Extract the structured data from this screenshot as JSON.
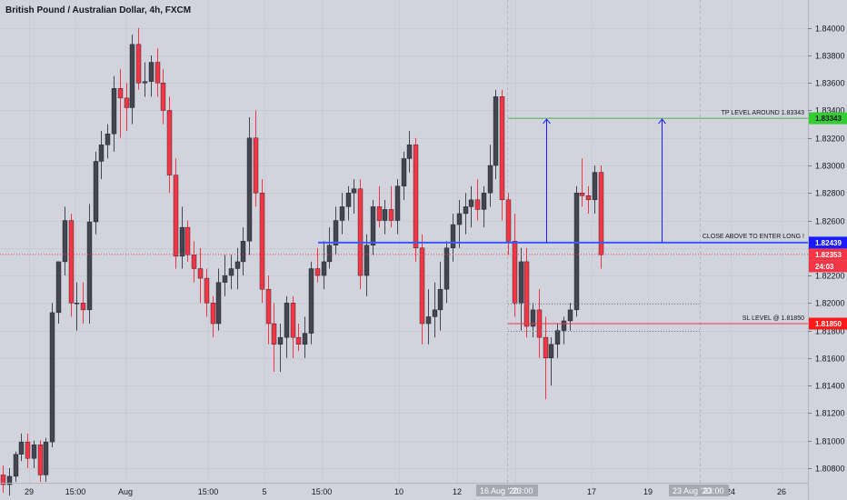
{
  "title": "British Pound / Australian Dollar, 4h, FXCM",
  "chart_data": {
    "type": "candlestick",
    "symbol": "British Pound / Australian Dollar",
    "interval": "4h",
    "source": "FXCM",
    "ylim": [
      1.807,
      1.8415
    ],
    "y_ticks": [
      "1.84000",
      "1.83800",
      "1.83600",
      "1.83400",
      "1.83200",
      "1.83000",
      "1.82800",
      "1.82600",
      "1.82400",
      "1.82200",
      "1.82000",
      "1.81800",
      "1.81600",
      "1.81400",
      "1.81200",
      "1.81000",
      "1.80800"
    ],
    "x_ticks": [
      "29",
      "15:00",
      "Aug",
      "15:00",
      "5",
      "15:00",
      "10",
      "12",
      "15:00",
      "17",
      "19",
      "15:00",
      "24",
      "26"
    ],
    "x_highlights": [
      "16 Aug '20",
      "23:00",
      "23 Aug '20",
      "23:00"
    ],
    "countdown": "24:03",
    "last_price": "1.82353",
    "levels": [
      {
        "name": "tp",
        "label": "TP LEVEL AROUND 1.83343",
        "value": 1.83343,
        "tag": "1.83343",
        "color": "#4caf50",
        "tag_bg": "#33cc33"
      },
      {
        "name": "entry",
        "label": "CLOSE ABOVE TO ENTER LONG !",
        "value": 1.82439,
        "tag": "1.82439",
        "color": "#3d5afe",
        "tag_bg": "#1a1aff"
      },
      {
        "name": "sl",
        "label": "SL LEVEL @ 1.81850",
        "value": 1.8185,
        "tag": "1.81850",
        "color": "#f23645",
        "tag_bg": "#ff1a1a"
      }
    ],
    "candles": [
      [
        1.8075,
        1.8082,
        1.8062,
        1.8068
      ],
      [
        1.8068,
        1.808,
        1.806,
        1.8074
      ],
      [
        1.8074,
        1.8092,
        1.807,
        1.809
      ],
      [
        1.809,
        1.8105,
        1.8085,
        1.8099
      ],
      [
        1.8099,
        1.8105,
        1.808,
        1.8087
      ],
      [
        1.8087,
        1.81,
        1.808,
        1.8097
      ],
      [
        1.8097,
        1.81,
        1.807,
        1.8075
      ],
      [
        1.8075,
        1.8102,
        1.807,
        1.8099
      ],
      [
        1.8099,
        1.82,
        1.8095,
        1.8193
      ],
      [
        1.8193,
        1.823,
        1.8185,
        1.823
      ],
      [
        1.823,
        1.827,
        1.822,
        1.826
      ],
      [
        1.826,
        1.8265,
        1.819,
        1.82
      ],
      [
        1.82,
        1.8215,
        1.818,
        1.82
      ],
      [
        1.82,
        1.8215,
        1.8185,
        1.8195
      ],
      [
        1.8195,
        1.8272,
        1.8185,
        1.8259
      ],
      [
        1.8259,
        1.831,
        1.825,
        1.8303
      ],
      [
        1.8303,
        1.8325,
        1.829,
        1.8315
      ],
      [
        1.8315,
        1.833,
        1.8305,
        1.8323
      ],
      [
        1.8323,
        1.8365,
        1.831,
        1.8356
      ],
      [
        1.8356,
        1.837,
        1.832,
        1.8349
      ],
      [
        1.8349,
        1.836,
        1.8325,
        1.8342
      ],
      [
        1.8342,
        1.8395,
        1.833,
        1.8388
      ],
      [
        1.8388,
        1.84,
        1.8355,
        1.836
      ],
      [
        1.836,
        1.8375,
        1.835,
        1.8361
      ],
      [
        1.8361,
        1.838,
        1.835,
        1.8375
      ],
      [
        1.8375,
        1.8385,
        1.835,
        1.836
      ],
      [
        1.836,
        1.837,
        1.833,
        1.834
      ],
      [
        1.834,
        1.835,
        1.828,
        1.8293
      ],
      [
        1.8293,
        1.8305,
        1.8225,
        1.8234
      ],
      [
        1.8234,
        1.827,
        1.8225,
        1.8255
      ],
      [
        1.8255,
        1.826,
        1.823,
        1.8235
      ],
      [
        1.8235,
        1.8245,
        1.8215,
        1.8225
      ],
      [
        1.8225,
        1.824,
        1.82,
        1.8218
      ],
      [
        1.8218,
        1.8225,
        1.819,
        1.82
      ],
      [
        1.82,
        1.8205,
        1.8175,
        1.8185
      ],
      [
        1.8185,
        1.8225,
        1.818,
        1.8215
      ],
      [
        1.8215,
        1.8235,
        1.8205,
        1.822
      ],
      [
        1.822,
        1.8235,
        1.821,
        1.8225
      ],
      [
        1.8225,
        1.824,
        1.821,
        1.823
      ],
      [
        1.823,
        1.8255,
        1.822,
        1.8245
      ],
      [
        1.8245,
        1.8335,
        1.8235,
        1.832
      ],
      [
        1.832,
        1.834,
        1.827,
        1.828
      ],
      [
        1.828,
        1.829,
        1.82,
        1.821
      ],
      [
        1.821,
        1.822,
        1.817,
        1.8185
      ],
      [
        1.8185,
        1.82,
        1.815,
        1.817
      ],
      [
        1.817,
        1.8185,
        1.815,
        1.8175
      ],
      [
        1.8175,
        1.8205,
        1.816,
        1.82
      ],
      [
        1.82,
        1.8205,
        1.816,
        1.8175
      ],
      [
        1.8175,
        1.8185,
        1.8165,
        1.817
      ],
      [
        1.817,
        1.819,
        1.816,
        1.8178
      ],
      [
        1.8178,
        1.823,
        1.817,
        1.8225
      ],
      [
        1.8225,
        1.824,
        1.8215,
        1.822
      ],
      [
        1.822,
        1.8245,
        1.821,
        1.823
      ],
      [
        1.823,
        1.8255,
        1.8225,
        1.8242
      ],
      [
        1.8242,
        1.827,
        1.8235,
        1.826
      ],
      [
        1.826,
        1.828,
        1.825,
        1.827
      ],
      [
        1.827,
        1.8285,
        1.826,
        1.828
      ],
      [
        1.828,
        1.829,
        1.8265,
        1.8283
      ],
      [
        1.8283,
        1.829,
        1.821,
        1.822
      ],
      [
        1.822,
        1.825,
        1.8205,
        1.8242
      ],
      [
        1.8242,
        1.8275,
        1.8235,
        1.827
      ],
      [
        1.827,
        1.8285,
        1.8255,
        1.826
      ],
      [
        1.826,
        1.8275,
        1.825,
        1.8268
      ],
      [
        1.8268,
        1.8285,
        1.8255,
        1.826
      ],
      [
        1.826,
        1.829,
        1.825,
        1.8285
      ],
      [
        1.8285,
        1.831,
        1.8275,
        1.8305
      ],
      [
        1.8305,
        1.8325,
        1.8295,
        1.8315
      ],
      [
        1.8315,
        1.832,
        1.823,
        1.824
      ],
      [
        1.824,
        1.825,
        1.817,
        1.8185
      ],
      [
        1.8185,
        1.821,
        1.817,
        1.819
      ],
      [
        1.819,
        1.8215,
        1.8175,
        1.8195
      ],
      [
        1.8195,
        1.823,
        1.818,
        1.821
      ],
      [
        1.821,
        1.8245,
        1.82,
        1.824
      ],
      [
        1.824,
        1.8265,
        1.823,
        1.8257
      ],
      [
        1.8257,
        1.8275,
        1.824,
        1.8265
      ],
      [
        1.8265,
        1.828,
        1.825,
        1.827
      ],
      [
        1.827,
        1.8285,
        1.8255,
        1.8275
      ],
      [
        1.8275,
        1.829,
        1.826,
        1.8268
      ],
      [
        1.8268,
        1.8285,
        1.8255,
        1.828
      ],
      [
        1.828,
        1.8315,
        1.827,
        1.83
      ],
      [
        1.83,
        1.8355,
        1.829,
        1.835
      ],
      [
        1.835,
        1.8355,
        1.826,
        1.8275
      ],
      [
        1.8275,
        1.828,
        1.8235,
        1.8245
      ],
      [
        1.8245,
        1.8265,
        1.819,
        1.82
      ],
      [
        1.82,
        1.824,
        1.818,
        1.823
      ],
      [
        1.823,
        1.824,
        1.8175,
        1.8183
      ],
      [
        1.8183,
        1.82,
        1.8175,
        1.8195
      ],
      [
        1.8195,
        1.821,
        1.816,
        1.8175
      ],
      [
        1.8175,
        1.819,
        1.813,
        1.816
      ],
      [
        1.816,
        1.8175,
        1.814,
        1.817
      ],
      [
        1.817,
        1.8185,
        1.816,
        1.818
      ],
      [
        1.818,
        1.819,
        1.817,
        1.8187
      ],
      [
        1.8187,
        1.82,
        1.818,
        1.8195
      ],
      [
        1.8195,
        1.8285,
        1.819,
        1.828
      ],
      [
        1.828,
        1.8305,
        1.827,
        1.8278
      ],
      [
        1.8278,
        1.8285,
        1.8265,
        1.8275
      ],
      [
        1.8275,
        1.83,
        1.8265,
        1.8295
      ],
      [
        1.8295,
        1.83,
        1.8225,
        1.8235
      ]
    ]
  }
}
